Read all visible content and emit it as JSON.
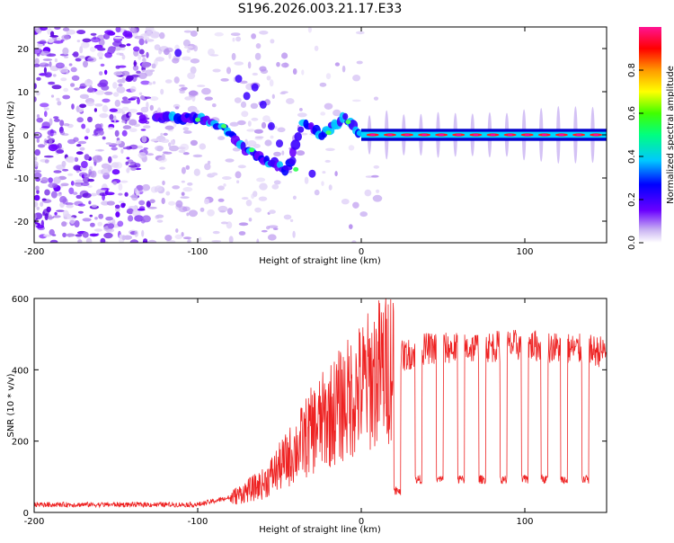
{
  "chart_data": {
    "title": "S196.2026.003.21.17.E33",
    "panels": [
      {
        "type": "heatmap",
        "xlabel": "Height of straight line (km)",
        "ylabel": "Frequency (Hz)",
        "xlim": [
          -200,
          150
        ],
        "ylim": [
          -25,
          25
        ],
        "x_ticks": [
          "-200",
          "-100",
          "0",
          "100"
        ],
        "y_ticks": [
          "20",
          "10",
          "0",
          "-10",
          "-20"
        ],
        "colorbar": {
          "label": "Normalized spectral amplitude",
          "range": [
            0,
            1
          ],
          "ticks": [
            "0.0",
            "0.2",
            "0.4",
            "0.6",
            "0.8"
          ]
        },
        "ridge": [
          {
            "x": -125,
            "y": 4
          },
          {
            "x": -100,
            "y": 4
          },
          {
            "x": -85,
            "y": 2
          },
          {
            "x": -72,
            "y": -3
          },
          {
            "x": -65,
            "y": -5
          },
          {
            "x": -45,
            "y": -8
          },
          {
            "x": -35,
            "y": 3
          },
          {
            "x": -25,
            "y": 0
          },
          {
            "x": -10,
            "y": 4
          },
          {
            "x": 0,
            "y": 0
          },
          {
            "x": 150,
            "y": 0
          }
        ]
      },
      {
        "type": "line",
        "xlabel": "Height of straight line (km)",
        "ylabel": "SNR (10 * v/v)",
        "xlim": [
          -200,
          150
        ],
        "ylim": [
          0,
          600
        ],
        "x_ticks": [
          "-200",
          "-100",
          "0",
          "100"
        ],
        "y_ticks": [
          "600",
          "400",
          "200",
          "0"
        ],
        "series": [
          {
            "name": "SNR",
            "color": "#ee2222",
            "approx_envelope": [
              {
                "x": -200,
                "y": 20
              },
              {
                "x": -100,
                "y": 20
              },
              {
                "x": -80,
                "y": 40
              },
              {
                "x": -60,
                "y": 80
              },
              {
                "x": -45,
                "y": 150
              },
              {
                "x": -30,
                "y": 230
              },
              {
                "x": -15,
                "y": 290
              },
              {
                "x": 0,
                "y": 350
              },
              {
                "x": 20,
                "y": 430
              },
              {
                "x": 40,
                "y": 460
              },
              {
                "x": 60,
                "y": 460
              },
              {
                "x": 100,
                "y": 470
              },
              {
                "x": 150,
                "y": 450
              }
            ],
            "dips": [
              {
                "x": 22,
                "y": 50
              },
              {
                "x": 35,
                "y": 80
              },
              {
                "x": 48,
                "y": 80
              },
              {
                "x": 61,
                "y": 80
              },
              {
                "x": 74,
                "y": 80
              },
              {
                "x": 87,
                "y": 80
              },
              {
                "x": 100,
                "y": 80
              },
              {
                "x": 112,
                "y": 80
              },
              {
                "x": 124,
                "y": 80
              },
              {
                "x": 137,
                "y": 80
              }
            ]
          }
        ]
      }
    ]
  }
}
